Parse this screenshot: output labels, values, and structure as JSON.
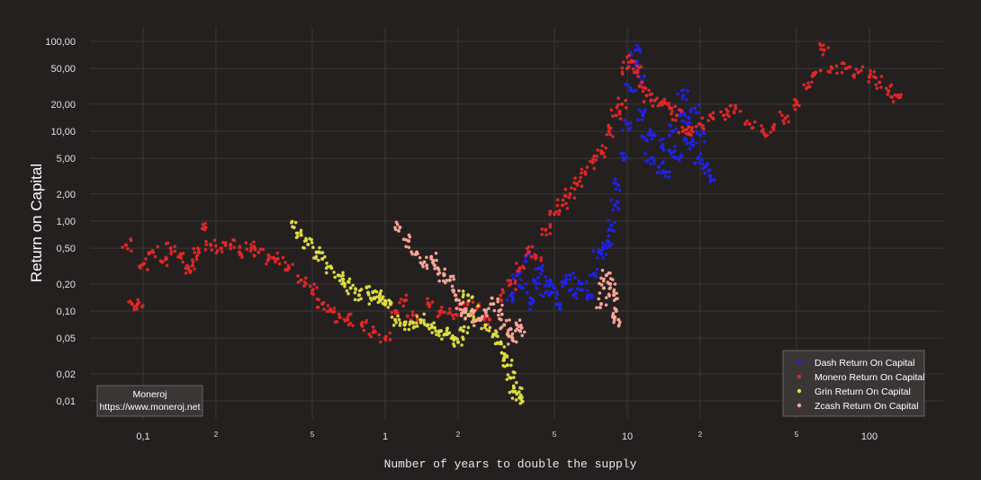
{
  "chart_data": {
    "type": "scatter",
    "title": "",
    "xlabel": "Number of years to double the supply",
    "ylabel": "Return on Capital",
    "xscale": "log",
    "yscale": "log",
    "xlim": [
      0.06,
      200
    ],
    "ylim": [
      0.007,
      130
    ],
    "grid": true,
    "legend_position": "bottom-right",
    "background_color": "#242020",
    "x_tick_labels": [
      "0,1",
      "2",
      "5",
      "1",
      "2",
      "5",
      "10",
      "2",
      "5",
      "100"
    ],
    "y_tick_labels": [
      "100,00",
      "50,00",
      "20,00",
      "10,00",
      "5,00",
      "2,00",
      "1,00",
      "0,50",
      "0,20",
      "0,10",
      "0,05",
      "0,02",
      "0,01"
    ],
    "annotation": {
      "line1": "Moneroj",
      "line2": "https://www.moneroj.net"
    },
    "series": [
      {
        "name": "Dash Return On Capital",
        "color": "#2222ee",
        "points": [
          [
            3.3,
            0.15
          ],
          [
            3.5,
            0.25
          ],
          [
            3.7,
            0.18
          ],
          [
            3.8,
            0.4
          ],
          [
            4.0,
            0.12
          ],
          [
            4.2,
            0.2
          ],
          [
            4.4,
            0.3
          ],
          [
            4.6,
            0.16
          ],
          [
            4.8,
            0.22
          ],
          [
            5.0,
            0.18
          ],
          [
            5.2,
            0.12
          ],
          [
            5.5,
            0.2
          ],
          [
            5.8,
            0.25
          ],
          [
            6.0,
            0.15
          ],
          [
            6.5,
            0.2
          ],
          [
            7.0,
            0.15
          ],
          [
            7.3,
            0.25
          ],
          [
            7.6,
            0.45
          ],
          [
            8.0,
            0.5
          ],
          [
            8.3,
            0.6
          ],
          [
            8.6,
            0.9
          ],
          [
            8.9,
            1.5
          ],
          [
            9.2,
            2.5
          ],
          [
            9.6,
            5
          ],
          [
            10.0,
            12
          ],
          [
            10.3,
            30
          ],
          [
            10.6,
            60
          ],
          [
            10.8,
            80
          ],
          [
            11.2,
            40
          ],
          [
            11.6,
            15
          ],
          [
            12.0,
            8
          ],
          [
            12.5,
            5
          ],
          [
            13.0,
            9
          ],
          [
            13.5,
            4
          ],
          [
            14.0,
            7
          ],
          [
            14.5,
            3.5
          ],
          [
            15.0,
            6
          ],
          [
            15.5,
            10
          ],
          [
            16.0,
            5
          ],
          [
            16.5,
            15
          ],
          [
            17.0,
            25
          ],
          [
            17.5,
            8
          ],
          [
            18.0,
            14
          ],
          [
            18.5,
            7
          ],
          [
            19.0,
            18
          ],
          [
            19.5,
            5
          ],
          [
            20.0,
            9
          ],
          [
            21.0,
            4
          ],
          [
            22.0,
            3.2
          ]
        ]
      },
      {
        "name": "Monero Return On Capital",
        "color": "#e52727",
        "points": [
          [
            0.085,
            0.54
          ],
          [
            0.09,
            0.12
          ],
          [
            0.095,
            0.12
          ],
          [
            0.1,
            0.33
          ],
          [
            0.11,
            0.45
          ],
          [
            0.12,
            0.35
          ],
          [
            0.13,
            0.5
          ],
          [
            0.14,
            0.4
          ],
          [
            0.15,
            0.3
          ],
          [
            0.16,
            0.32
          ],
          [
            0.17,
            0.45
          ],
          [
            0.18,
            0.85
          ],
          [
            0.19,
            0.55
          ],
          [
            0.21,
            0.5
          ],
          [
            0.23,
            0.55
          ],
          [
            0.25,
            0.45
          ],
          [
            0.28,
            0.5
          ],
          [
            0.3,
            0.45
          ],
          [
            0.33,
            0.38
          ],
          [
            0.36,
            0.38
          ],
          [
            0.4,
            0.3
          ],
          [
            0.45,
            0.22
          ],
          [
            0.5,
            0.17
          ],
          [
            0.55,
            0.12
          ],
          [
            0.6,
            0.1
          ],
          [
            0.65,
            0.085
          ],
          [
            0.7,
            0.08
          ],
          [
            0.8,
            0.07
          ],
          [
            0.9,
            0.06
          ],
          [
            1.0,
            0.05
          ],
          [
            1.1,
            0.1
          ],
          [
            1.2,
            0.13
          ],
          [
            1.3,
            0.09
          ],
          [
            1.5,
            0.12
          ],
          [
            1.7,
            0.1
          ],
          [
            1.9,
            0.09
          ],
          [
            2.1,
            0.12
          ],
          [
            2.4,
            0.11
          ],
          [
            2.7,
            0.08
          ],
          [
            3.0,
            0.15
          ],
          [
            3.3,
            0.2
          ],
          [
            3.6,
            0.3
          ],
          [
            3.9,
            0.45
          ],
          [
            4.2,
            0.4
          ],
          [
            4.6,
            0.8
          ],
          [
            5.0,
            1.2
          ],
          [
            5.4,
            1.5
          ],
          [
            5.8,
            2.0
          ],
          [
            6.2,
            2.6
          ],
          [
            6.7,
            3.5
          ],
          [
            7.2,
            4.5
          ],
          [
            7.8,
            6
          ],
          [
            8.4,
            10
          ],
          [
            9.0,
            15
          ],
          [
            9.5,
            20
          ],
          [
            10.0,
            50
          ],
          [
            10.5,
            60
          ],
          [
            11.0,
            45
          ],
          [
            11.5,
            35
          ],
          [
            12.0,
            25
          ],
          [
            13.0,
            22
          ],
          [
            14.0,
            20
          ],
          [
            15.0,
            18
          ],
          [
            16.0,
            15
          ],
          [
            17.0,
            10
          ],
          [
            18.0,
            9.5
          ],
          [
            20.0,
            12
          ],
          [
            22.0,
            15
          ],
          [
            25.0,
            15
          ],
          [
            28.0,
            18
          ],
          [
            32.0,
            12
          ],
          [
            36.0,
            10
          ],
          [
            40.0,
            11
          ],
          [
            45.0,
            14
          ],
          [
            50.0,
            20
          ],
          [
            55.0,
            30
          ],
          [
            60.0,
            45
          ],
          [
            65.0,
            80
          ],
          [
            70.0,
            50
          ],
          [
            80.0,
            50
          ],
          [
            90.0,
            45
          ],
          [
            100.0,
            40
          ],
          [
            110.0,
            35
          ],
          [
            120.0,
            28
          ],
          [
            130.0,
            25
          ]
        ]
      },
      {
        "name": "Grin Return On Capital",
        "color": "#e0e040",
        "points": [
          [
            0.42,
            0.85
          ],
          [
            0.45,
            0.7
          ],
          [
            0.48,
            0.55
          ],
          [
            0.52,
            0.45
          ],
          [
            0.55,
            0.38
          ],
          [
            0.6,
            0.3
          ],
          [
            0.64,
            0.25
          ],
          [
            0.68,
            0.2
          ],
          [
            0.72,
            0.18
          ],
          [
            0.78,
            0.15
          ],
          [
            0.85,
            0.16
          ],
          [
            0.9,
            0.14
          ],
          [
            0.95,
            0.15
          ],
          [
            1.0,
            0.13
          ],
          [
            1.05,
            0.12
          ],
          [
            1.1,
            0.08
          ],
          [
            1.2,
            0.07
          ],
          [
            1.3,
            0.075
          ],
          [
            1.4,
            0.08
          ],
          [
            1.5,
            0.07
          ],
          [
            1.6,
            0.065
          ],
          [
            1.7,
            0.06
          ],
          [
            1.8,
            0.055
          ],
          [
            1.9,
            0.05
          ],
          [
            2.0,
            0.045
          ],
          [
            2.1,
            0.06
          ],
          [
            2.2,
            0.15
          ],
          [
            2.3,
            0.1
          ],
          [
            2.4,
            0.08
          ],
          [
            2.6,
            0.07
          ],
          [
            2.8,
            0.055
          ],
          [
            3.0,
            0.045
          ],
          [
            3.1,
            0.03
          ],
          [
            3.2,
            0.025
          ],
          [
            3.3,
            0.018
          ],
          [
            3.4,
            0.014
          ],
          [
            3.5,
            0.012
          ],
          [
            3.6,
            0.011
          ]
        ]
      },
      {
        "name": "Zcash Return On Capital",
        "color": "#ffa89a",
        "points": [
          [
            1.15,
            0.85
          ],
          [
            1.25,
            0.6
          ],
          [
            1.35,
            0.45
          ],
          [
            1.45,
            0.35
          ],
          [
            1.55,
            0.4
          ],
          [
            1.65,
            0.3
          ],
          [
            1.75,
            0.25
          ],
          [
            1.85,
            0.22
          ],
          [
            1.95,
            0.15
          ],
          [
            2.05,
            0.12
          ],
          [
            2.15,
            0.1
          ],
          [
            2.25,
            0.09
          ],
          [
            2.4,
            0.08
          ],
          [
            2.6,
            0.1
          ],
          [
            2.8,
            0.12
          ],
          [
            2.95,
            0.1
          ],
          [
            3.1,
            0.07
          ],
          [
            3.2,
            0.055
          ],
          [
            3.35,
            0.05
          ],
          [
            3.5,
            0.07
          ],
          [
            3.6,
            0.06
          ],
          [
            7.8,
            0.12
          ],
          [
            8.0,
            0.18
          ],
          [
            8.2,
            0.25
          ],
          [
            8.5,
            0.2
          ],
          [
            8.8,
            0.15
          ],
          [
            9.0,
            0.1
          ],
          [
            9.2,
            0.08
          ]
        ]
      }
    ]
  }
}
